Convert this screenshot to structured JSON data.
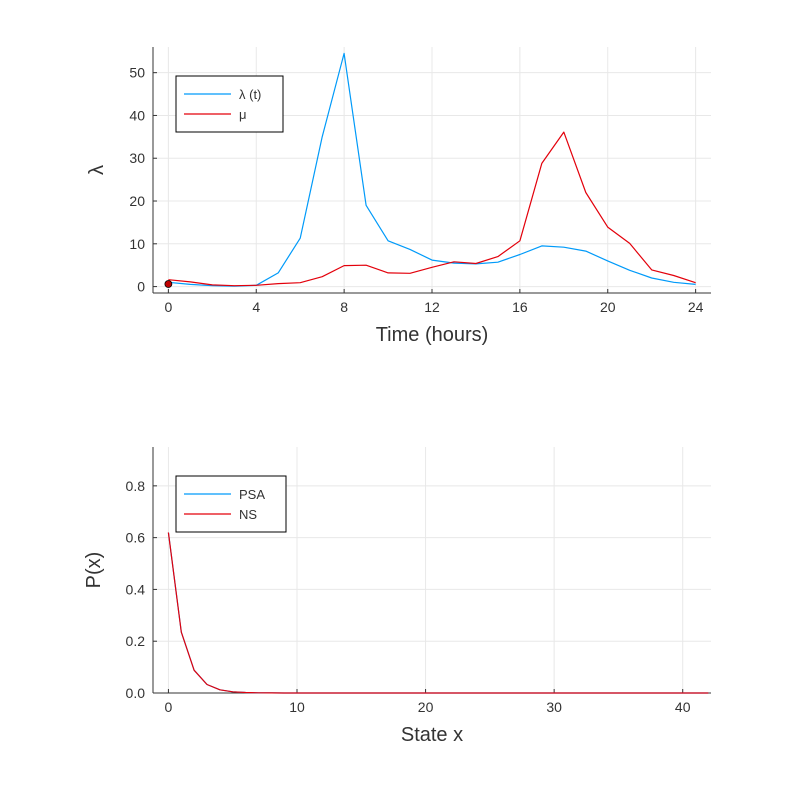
{
  "colors": {
    "blue": "#009AF9",
    "red": "#E3000B",
    "grid": "#E8E8E8",
    "axis": "#333333",
    "dot": "#C00000"
  },
  "chart_data": [
    {
      "type": "line",
      "xlabel": "Time (hours)",
      "ylabel": "λ",
      "xlim": [
        -0.7,
        24.7
      ],
      "ylim": [
        -1.5,
        56
      ],
      "xticks": [
        0,
        4,
        8,
        12,
        16,
        20,
        24
      ],
      "yticks": [
        0,
        10,
        20,
        30,
        40,
        50
      ],
      "grid": true,
      "legend_position": "top-left",
      "x": [
        0,
        1,
        2,
        3,
        4,
        5,
        6,
        7,
        8,
        9,
        10,
        11,
        12,
        13,
        14,
        15,
        16,
        17,
        18,
        19,
        20,
        21,
        22,
        23,
        24
      ],
      "series": [
        {
          "name": "λ (t)",
          "color": "#009AF9",
          "values": [
            1.0,
            0.5,
            0.2,
            0.1,
            0.3,
            3.2,
            11.3,
            35.0,
            54.5,
            19.0,
            10.7,
            8.7,
            6.2,
            5.5,
            5.3,
            5.7,
            7.5,
            9.5,
            9.2,
            8.3,
            6.0,
            3.8,
            2.0,
            1.0,
            0.5
          ]
        },
        {
          "name": "μ",
          "color": "#E3000B",
          "values": [
            1.6,
            1.1,
            0.4,
            0.2,
            0.3,
            0.7,
            0.9,
            2.3,
            4.9,
            5.0,
            3.2,
            3.1,
            4.5,
            5.8,
            5.4,
            7.0,
            10.7,
            28.8,
            36.1,
            22.0,
            13.9,
            10.1,
            3.9,
            2.6,
            0.9
          ]
        }
      ],
      "marker": {
        "x": 0,
        "y": 0.6
      }
    },
    {
      "type": "line",
      "xlabel": "State x",
      "ylabel": "P(x)",
      "xlim": [
        -1.2,
        42.2
      ],
      "ylim": [
        0,
        0.95
      ],
      "xticks": [
        0,
        10,
        20,
        30,
        40
      ],
      "yticks": [
        0.0,
        0.2,
        0.4,
        0.6,
        0.8
      ],
      "ytick_labels": [
        "0.0",
        "0.2",
        "0.4",
        "0.6",
        "0.8"
      ],
      "grid": true,
      "legend_position": "top-left",
      "x": [
        0,
        1,
        2,
        3,
        4,
        5,
        6,
        7,
        8,
        9,
        10,
        11,
        12,
        13,
        14,
        15,
        16,
        17,
        18,
        19,
        20,
        21,
        22,
        23,
        24,
        25,
        26,
        27,
        28,
        29,
        30,
        31,
        32,
        33,
        34,
        35,
        36,
        37,
        38,
        39,
        40,
        41,
        42
      ],
      "series": [
        {
          "name": "PSA",
          "color": "#009AF9",
          "values": [
            0.62,
            0.235,
            0.088,
            0.033,
            0.0125,
            0.0047,
            0.0018,
            0.0007,
            0.0003,
            0.0001,
            0,
            0,
            0,
            0,
            0,
            0,
            0,
            0,
            0,
            0,
            0,
            0,
            0,
            0,
            0,
            0,
            0,
            0,
            0,
            0,
            0,
            0,
            0,
            0,
            0,
            0,
            0,
            0,
            0,
            0,
            0,
            0,
            0
          ]
        },
        {
          "name": "NS",
          "color": "#E3000B",
          "values": [
            0.62,
            0.235,
            0.088,
            0.033,
            0.0125,
            0.0047,
            0.0018,
            0.0007,
            0.0003,
            0.0001,
            0,
            0,
            0,
            0,
            0,
            0,
            0,
            0,
            0,
            0,
            0,
            0,
            0,
            0,
            0,
            0,
            0,
            0,
            0,
            0,
            0,
            0,
            0,
            0,
            0,
            0,
            0,
            0,
            0,
            0,
            0,
            0,
            0
          ]
        }
      ]
    }
  ]
}
